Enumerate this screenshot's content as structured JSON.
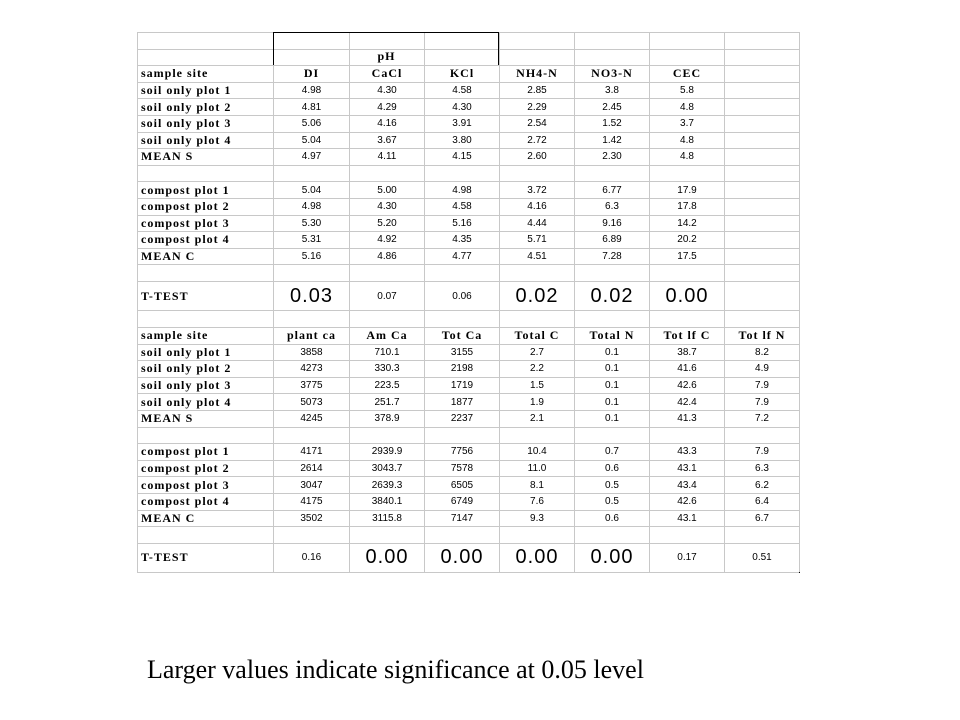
{
  "table1": {
    "group_label": "pH",
    "header": [
      "sample site",
      "DI",
      "CaCl",
      "KCl",
      "NH4-N",
      "NO3-N",
      "CEC"
    ],
    "rows": [
      [
        "soil only plot 1",
        "4.98",
        "4.30",
        "4.58",
        "2.85",
        "3.8",
        "5.8"
      ],
      [
        "soil only plot 2",
        "4.81",
        "4.29",
        "4.30",
        "2.29",
        "2.45",
        "4.8"
      ],
      [
        "soil only plot 3",
        "5.06",
        "4.16",
        "3.91",
        "2.54",
        "1.52",
        "3.7"
      ],
      [
        "soil only plot 4",
        "5.04",
        "3.67",
        "3.80",
        "2.72",
        "1.42",
        "4.8"
      ],
      [
        "MEAN S",
        "4.97",
        "4.11",
        "4.15",
        "2.60",
        "2.30",
        "4.8"
      ],
      [
        "compost plot 1",
        "5.04",
        "5.00",
        "4.98",
        "3.72",
        "6.77",
        "17.9"
      ],
      [
        "compost plot 2",
        "4.98",
        "4.30",
        "4.58",
        "4.16",
        "6.3",
        "17.8"
      ],
      [
        "compost plot 3",
        "5.30",
        "5.20",
        "5.16",
        "4.44",
        "9.16",
        "14.2"
      ],
      [
        "compost plot 4",
        "5.31",
        "4.92",
        "4.35",
        "5.71",
        "6.89",
        "20.2"
      ],
      [
        "MEAN C",
        "5.16",
        "4.86",
        "4.77",
        "4.51",
        "7.28",
        "17.5"
      ],
      [
        "T-TEST",
        "0.03",
        "0.07",
        "0.06",
        "0.02",
        "0.02",
        "0.00"
      ]
    ]
  },
  "table2": {
    "header": [
      "sample site",
      "plant ca",
      "Am Ca",
      "Tot Ca",
      "Total C",
      "Total N",
      "Tot lf C",
      "Tot lf N"
    ],
    "rows": [
      [
        "soil only plot 1",
        "3858",
        "710.1",
        "3155",
        "2.7",
        "0.1",
        "38.7",
        "8.2"
      ],
      [
        "soil only plot 2",
        "4273",
        "330.3",
        "2198",
        "2.2",
        "0.1",
        "41.6",
        "4.9"
      ],
      [
        "soil only plot 3",
        "3775",
        "223.5",
        "1719",
        "1.5",
        "0.1",
        "42.6",
        "7.9"
      ],
      [
        "soil only plot 4",
        "5073",
        "251.7",
        "1877",
        "1.9",
        "0.1",
        "42.4",
        "7.9"
      ],
      [
        "MEAN S",
        "4245",
        "378.9",
        "2237",
        "2.1",
        "0.1",
        "41.3",
        "7.2"
      ],
      [
        "compost plot 1",
        "4171",
        "2939.9",
        "7756",
        "10.4",
        "0.7",
        "43.3",
        "7.9"
      ],
      [
        "compost plot 2",
        "2614",
        "3043.7",
        "7578",
        "11.0",
        "0.6",
        "43.1",
        "6.3"
      ],
      [
        "compost plot 3",
        "3047",
        "2639.3",
        "6505",
        "8.1",
        "0.5",
        "43.4",
        "6.2"
      ],
      [
        "compost plot 4",
        "4175",
        "3840.1",
        "6749",
        "7.6",
        "0.5",
        "42.6",
        "6.4"
      ],
      [
        "MEAN C",
        "3502",
        "3115.8",
        "7147",
        "9.3",
        "0.6",
        "43.1",
        "6.7"
      ],
      [
        "T-TEST",
        "0.16",
        "0.00",
        "0.00",
        "0.00",
        "0.00",
        "0.17",
        "0.51"
      ]
    ]
  },
  "footnote": "Larger values indicate significance at 0.05 level"
}
